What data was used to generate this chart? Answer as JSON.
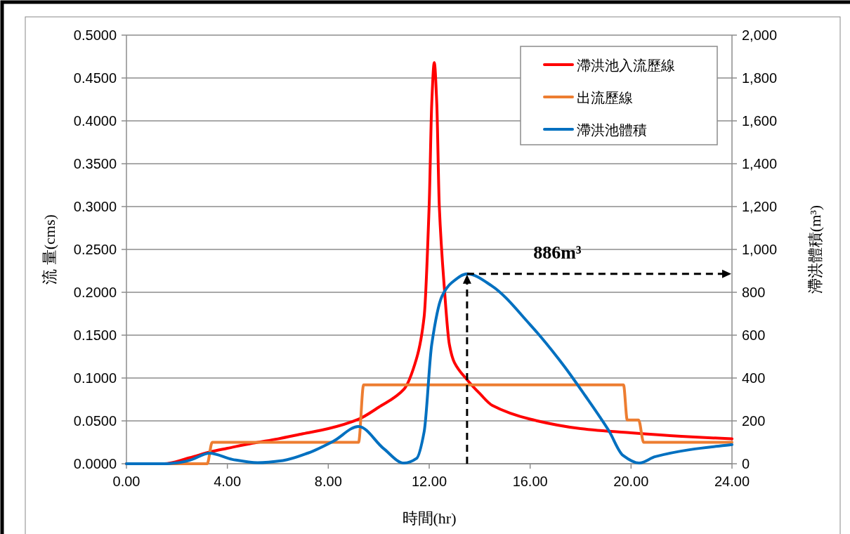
{
  "chart_data": {
    "type": "line",
    "xlabel": "時間(hr)",
    "ylabel": "流 量(cms)",
    "y2label": "滯洪體積(m³)",
    "xlim": [
      0,
      24
    ],
    "ylim": [
      0,
      0.5
    ],
    "y2lim": [
      0,
      2000
    ],
    "xticks": [
      {
        "value": 0,
        "label": "0.00"
      },
      {
        "value": 4,
        "label": "4.00"
      },
      {
        "value": 8,
        "label": "8.00"
      },
      {
        "value": 12,
        "label": "12.00"
      },
      {
        "value": 16,
        "label": "16.00"
      },
      {
        "value": 20,
        "label": "20.00"
      },
      {
        "value": 24,
        "label": "24.00"
      }
    ],
    "yticks": [
      {
        "value": 0,
        "label": "0.0000"
      },
      {
        "value": 0.05,
        "label": "0.0500"
      },
      {
        "value": 0.1,
        "label": "0.1000"
      },
      {
        "value": 0.15,
        "label": "0.1500"
      },
      {
        "value": 0.2,
        "label": "0.2000"
      },
      {
        "value": 0.25,
        "label": "0.2500"
      },
      {
        "value": 0.3,
        "label": "0.3000"
      },
      {
        "value": 0.35,
        "label": "0.3500"
      },
      {
        "value": 0.4,
        "label": "0.4000"
      },
      {
        "value": 0.45,
        "label": "0.4500"
      },
      {
        "value": 0.5,
        "label": "0.5000"
      }
    ],
    "y2ticks": [
      0,
      200,
      400,
      600,
      800,
      {
        "value": 1000,
        "label": "1,000"
      },
      {
        "value": 1200,
        "label": "1,200"
      },
      {
        "value": 1400,
        "label": "1,400"
      },
      {
        "value": 1600,
        "label": "1,600"
      },
      {
        "value": 1800,
        "label": "1,800"
      },
      {
        "value": 2000,
        "label": "2,000"
      }
    ],
    "grid": "y",
    "legend": "top right",
    "marker": "none",
    "line_style": "solid",
    "series": [
      {
        "name": "滯洪池入流歷線",
        "color": "#ff0000",
        "x": [
          0,
          1.5,
          2.5,
          3.34,
          4,
          5,
          6,
          7,
          8,
          9.2,
          10,
          11,
          11.5,
          11.8,
          12.0,
          12.1,
          12.2,
          12.3,
          12.4,
          12.6,
          12.8,
          13.0,
          13.5,
          14,
          14.5,
          16,
          18,
          20,
          22,
          24
        ],
        "values": [
          0,
          0,
          0.007,
          0.014,
          0.018,
          0.024,
          0.029,
          0.035,
          0.041,
          0.052,
          0.066,
          0.087,
          0.123,
          0.172,
          0.303,
          0.42,
          0.468,
          0.42,
          0.3,
          0.205,
          0.139,
          0.118,
          0.098,
          0.082,
          0.068,
          0.052,
          0.041,
          0.036,
          0.032,
          0.029
        ]
      },
      {
        "name": "出流歷線",
        "color": "#ed7d31",
        "x": [
          0,
          3.2,
          3.4,
          9.2,
          9.4,
          19.7,
          19.85,
          20.3,
          20.5,
          24
        ],
        "values": [
          0,
          0,
          0.025,
          0.025,
          0.092,
          0.092,
          0.051,
          0.051,
          0.025,
          0.025
        ]
      },
      {
        "name": "滯洪池體積",
        "color": "#0070c0",
        "axis": "y2",
        "x": [
          0,
          1.5,
          2.0,
          2.5,
          3.3,
          4.2,
          5.2,
          6.2,
          7.2,
          8.2,
          9.2,
          10.2,
          11.0,
          11.5,
          11.8,
          12.1,
          12.5,
          12.9,
          13.5,
          14.48,
          16,
          17.26,
          18.18,
          19.12,
          19.68,
          20.32,
          20.96,
          22.35,
          24
        ],
        "values": [
          0,
          0,
          4,
          16,
          49,
          20,
          5,
          15,
          50,
          105,
          174,
          70,
          3,
          25,
          150,
          557,
          780,
          846,
          886,
          830,
          649,
          469,
          318,
          154,
          39,
          3,
          33,
          66,
          89
        ]
      }
    ],
    "annotations": [
      "886m³"
    ]
  }
}
